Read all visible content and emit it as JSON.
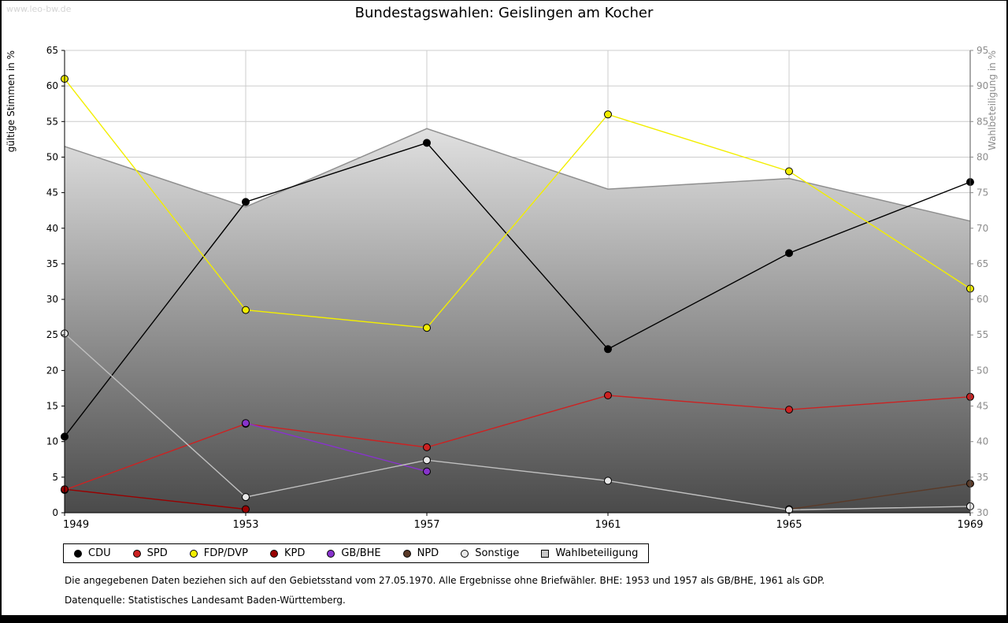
{
  "page": {
    "watermark": "www.leo-bw.de",
    "footnote1": "Die angegebenen Daten beziehen sich auf den Gebietsstand vom 27.05.1970. Alle Ergebnisse ohne Briefwähler. BHE: 1953 und 1957 als GB/BHE, 1961 als GDP.",
    "footnote2": "Datenquelle: Statistisches Landesamt Baden-Württemberg."
  },
  "chart_data": {
    "type": "line",
    "title": "Bundestagswahlen: Geislingen am Kocher",
    "categories": [
      "1949",
      "1953",
      "1957",
      "1961",
      "1965",
      "1969"
    ],
    "left_axis": {
      "label": "gültige Stimmen in %",
      "min": 0,
      "max": 65,
      "step": 5
    },
    "right_axis": {
      "label": "Wahlbeteiligung in %",
      "min": 30,
      "max": 95,
      "step": 5
    },
    "grid": true,
    "legend_position": "bottom",
    "series": [
      {
        "name": "CDU",
        "color": "#000000",
        "values": [
          10.7,
          43.7,
          52.0,
          23.0,
          36.5,
          46.5
        ]
      },
      {
        "name": "SPD",
        "color": "#cc2222",
        "values": [
          3.2,
          12.5,
          9.2,
          16.5,
          14.5,
          16.3
        ]
      },
      {
        "name": "FDP/DVP",
        "color": "#f2ee00",
        "values": [
          61.0,
          28.5,
          26.0,
          56.0,
          48.0,
          31.5
        ]
      },
      {
        "name": "KPD",
        "color": "#990000",
        "values": [
          3.3,
          0.5,
          null,
          null,
          null,
          null
        ]
      },
      {
        "name": "GB/BHE",
        "color": "#8833cc",
        "values": [
          null,
          12.6,
          5.8,
          null,
          null,
          null
        ]
      },
      {
        "name": "NPD",
        "color": "#5a3a28",
        "values": [
          null,
          null,
          null,
          null,
          0.5,
          4.1
        ]
      },
      {
        "name": "Sonstige",
        "color": "#c0c0c0",
        "marker_fill": "#e8e8e8",
        "values": [
          25.2,
          2.2,
          7.4,
          4.5,
          0.4,
          0.9
        ]
      }
    ],
    "turnout": {
      "name": "Wahlbeteiligung",
      "axis": "right",
      "line_color": "#8f8f8f",
      "gradient_top": "#ffffff",
      "gradient_bottom": "#4a4a4a",
      "values": [
        81.5,
        73.0,
        84.0,
        75.5,
        77.0,
        71.0
      ]
    }
  }
}
